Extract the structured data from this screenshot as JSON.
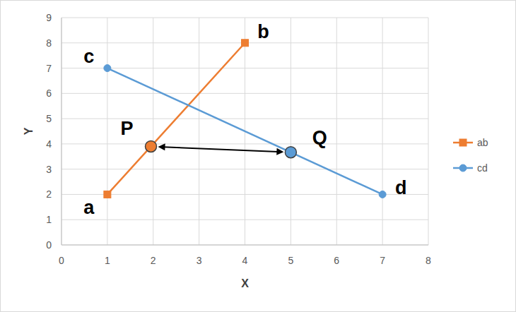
{
  "chart_data": {
    "type": "line",
    "x_label": "X",
    "y_label": "Y",
    "xlim": [
      0,
      8
    ],
    "xticks": [
      0,
      1,
      2,
      3,
      4,
      5,
      6,
      7,
      8
    ],
    "ylim": [
      0,
      9
    ],
    "yticks": [
      0,
      1,
      2,
      3,
      4,
      5,
      6,
      7,
      8,
      9
    ],
    "grid": true,
    "legend": "right",
    "series": [
      {
        "name": "ab",
        "color": "#ed7d31",
        "marker": "square",
        "line_style": "solid",
        "x": [
          1,
          4
        ],
        "values": [
          2,
          8
        ],
        "point_labels": [
          "a",
          "b"
        ]
      },
      {
        "name": "cd",
        "color": "#5b9bd5",
        "marker": "circle",
        "line_style": "solid",
        "x": [
          1,
          7
        ],
        "values": [
          7,
          2
        ],
        "point_labels": [
          "c",
          "d"
        ]
      }
    ],
    "annotations": [
      {
        "text": "P",
        "x": 1.95,
        "y": 3.9,
        "color": "#ed7d31"
      },
      {
        "text": "Q",
        "x": 5,
        "y": 3.67,
        "color": "#5b9bd5"
      }
    ]
  }
}
